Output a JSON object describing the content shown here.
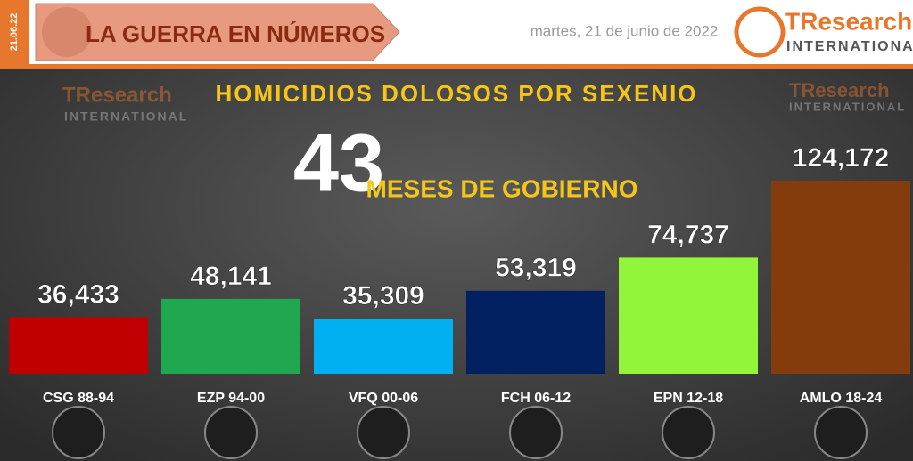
{
  "header": {
    "date_tag": "21.06.22",
    "banner": "LA GUERRA EN NÚMEROS",
    "date": "martes, 21 de junio de 2022",
    "logo_name": "TResearch",
    "logo_sub": "INTERNATIONAL"
  },
  "chart_data": {
    "type": "bar",
    "title": "HOMICIDIOS DOLOSOS POR SEXENIO",
    "annotation_number": "43",
    "annotation_text": "MESES DE GOBIERNO",
    "categories": [
      "CSG 88-94",
      "EZP 94-00",
      "VFQ 00-06",
      "FCH 06-12",
      "EPN 12-18",
      "AMLO 18-24"
    ],
    "values": [
      36433,
      48141,
      35309,
      53319,
      74737,
      124172
    ],
    "value_labels": [
      "36,433",
      "48,141",
      "35,309",
      "53,319",
      "74,737",
      "124,172"
    ],
    "colors": [
      "#c00000",
      "#1fa84f",
      "#00b0f0",
      "#002060",
      "#92f53a",
      "#843c0c"
    ]
  }
}
